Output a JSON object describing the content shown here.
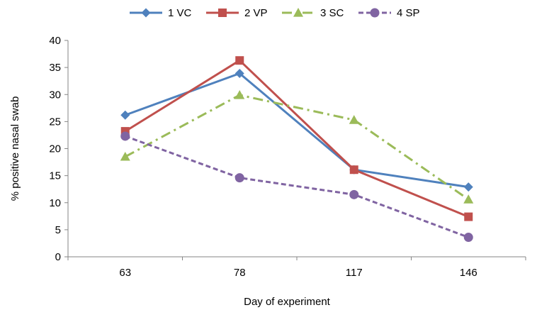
{
  "chart_data": {
    "type": "line",
    "title": "",
    "xlabel": "Day of experiment",
    "ylabel": "% positive nasal swab",
    "categories": [
      "63",
      "78",
      "117",
      "146"
    ],
    "ylim": [
      0,
      40
    ],
    "yticks": [
      0,
      5,
      10,
      15,
      20,
      25,
      30,
      35,
      40
    ],
    "grid": false,
    "legend_position": "top",
    "series": [
      {
        "name": "1 VC",
        "values": [
          26.2,
          33.9,
          16.1,
          12.9
        ],
        "color": "#4F81BD",
        "marker": "diamond",
        "dash": "solid"
      },
      {
        "name": "2 VP",
        "values": [
          23.2,
          36.3,
          16.1,
          7.4
        ],
        "color": "#C0504D",
        "marker": "square",
        "dash": "solid"
      },
      {
        "name": "3 SC",
        "values": [
          18.5,
          29.9,
          25.3,
          10.6
        ],
        "color": "#9BBB59",
        "marker": "triangle",
        "dash": "dashdot"
      },
      {
        "name": "4 SP",
        "values": [
          22.3,
          14.6,
          11.5,
          3.6
        ],
        "color": "#8064A2",
        "marker": "circle",
        "dash": "dash"
      }
    ]
  }
}
